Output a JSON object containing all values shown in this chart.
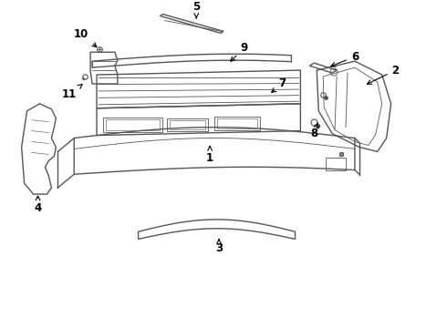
{
  "bg_color": "#ffffff",
  "line_color": "#555555",
  "label_color": "#000000",
  "lw_main": 1.0,
  "lw_thin": 0.6,
  "label_fontsize": 8.5
}
